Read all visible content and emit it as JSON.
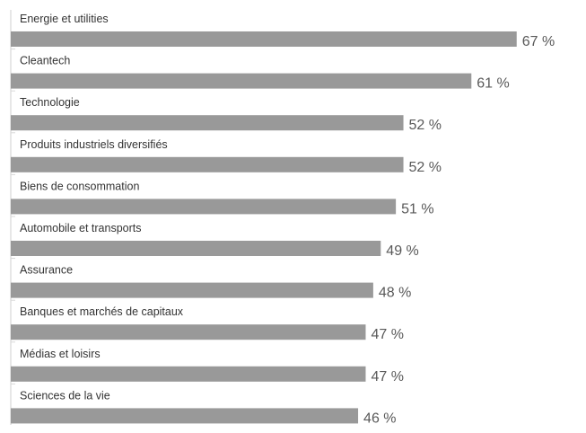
{
  "chart_data": {
    "type": "bar",
    "orientation": "horizontal",
    "categories": [
      "Energie et utilities",
      "Cleantech",
      "Technologie",
      "Produits industriels diversifiés",
      "Biens de consommation",
      "Automobile et transports",
      "Assurance",
      "Banques et marchés de capitaux",
      "Médias et loisirs",
      "Sciences de la vie"
    ],
    "values": [
      67,
      61,
      52,
      52,
      51,
      49,
      48,
      47,
      47,
      46
    ],
    "value_labels": [
      "67 %",
      "61 %",
      "52 %",
      "52 %",
      "51 %",
      "49 %",
      "48 %",
      "47 %",
      "47 %",
      "46 %"
    ],
    "unit": "%",
    "xlim": [
      0,
      70
    ],
    "bar_color": "#999999",
    "grid": false,
    "legend": "none"
  }
}
